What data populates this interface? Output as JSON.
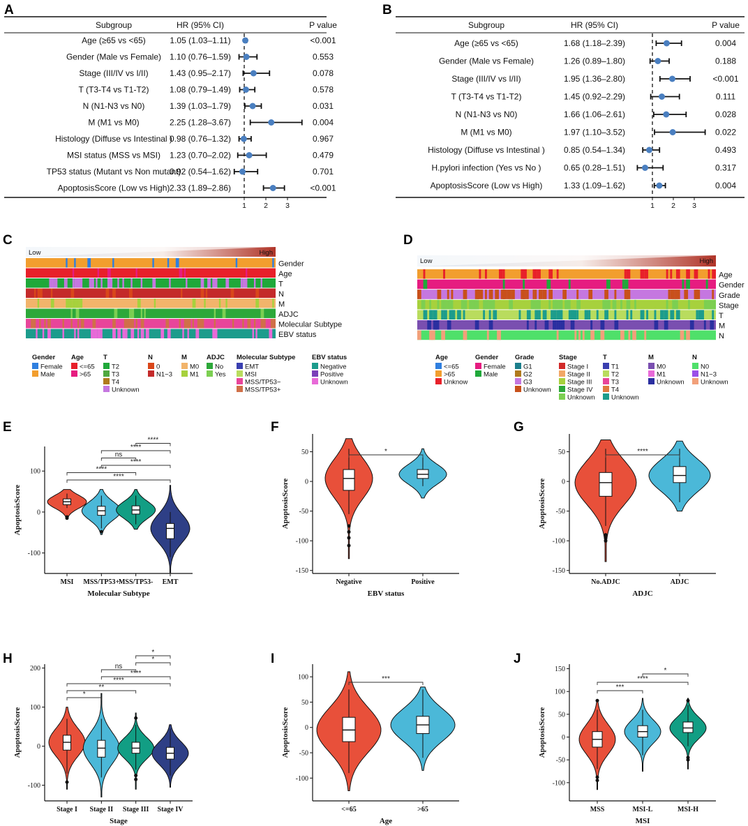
{
  "chart_data": [
    {
      "panel": "A",
      "type": "forest",
      "headers": [
        "Subgroup",
        "HR (95% CI)",
        "P value"
      ],
      "rows": [
        {
          "label": "Age (≥65 vs <65)",
          "hr_text": "1.05 (1.03–1.11)",
          "p": "<0.001",
          "hr": 1.05,
          "lo": 1.03,
          "hi": 1.11
        },
        {
          "label": "Gender (Male vs Female)",
          "hr_text": "1.10 (0.76–1.59)",
          "p": "0.553",
          "hr": 1.1,
          "lo": 0.76,
          "hi": 1.59
        },
        {
          "label": "Stage (III/IV vs I/II)",
          "hr_text": "1.43 (0.95–2.17)",
          "p": "0.078",
          "hr": 1.43,
          "lo": 0.95,
          "hi": 2.17
        },
        {
          "label": "T (T3-T4 vs T1-T2)",
          "hr_text": "1.08 (0.79–1.49)",
          "p": "0.578",
          "hr": 1.08,
          "lo": 0.79,
          "hi": 1.49
        },
        {
          "label": "N (N1-N3 vs N0)",
          "hr_text": "1.39 (1.03–1.79)",
          "p": "0.031",
          "hr": 1.39,
          "lo": 1.03,
          "hi": 1.79
        },
        {
          "label": "M (M1 vs M0)",
          "hr_text": "2.25 (1.28–3.67)",
          "p": "0.004",
          "hr": 2.25,
          "lo": 1.28,
          "hi": 3.67
        },
        {
          "label": "Histology (Diffuse vs Intestinal )",
          "hr_text": "0.98 (0.76–1.32)",
          "p": "0.967",
          "hr": 0.98,
          "lo": 0.76,
          "hi": 1.32
        },
        {
          "label": "MSI status (MSS vs MSI)",
          "hr_text": "1.23 (0.70–2.02)",
          "p": "0.479",
          "hr": 1.23,
          "lo": 0.7,
          "hi": 2.02
        },
        {
          "label": "TP53 status (Mutant vs Non mutant)",
          "hr_text": "0.92 (0.54–1.62)",
          "p": "0.701",
          "hr": 0.92,
          "lo": 0.54,
          "hi": 1.62
        },
        {
          "label": "ApoptosisScore (Low vs High)",
          "hr_text": "2.33 (1.89–2.86)",
          "p": "<0.001",
          "hr": 2.33,
          "lo": 1.89,
          "hi": 2.86
        }
      ],
      "ticks": [
        1,
        2,
        3
      ]
    },
    {
      "panel": "B",
      "type": "forest",
      "headers": [
        "Subgroup",
        "HR (95% CI)",
        "P value"
      ],
      "rows": [
        {
          "label": "Age (≥65 vs <65)",
          "hr_text": "1.68 (1.18–2.39)",
          "p": "0.004",
          "hr": 1.68,
          "lo": 1.18,
          "hi": 2.39
        },
        {
          "label": "Gender (Male vs Female)",
          "hr_text": "1.26 (0.89–1.80)",
          "p": "0.188",
          "hr": 1.26,
          "lo": 0.89,
          "hi": 1.8
        },
        {
          "label": "Stage (III/IV vs I/II)",
          "hr_text": "1.95 (1.36–2.80)",
          "p": "<0.001",
          "hr": 1.95,
          "lo": 1.36,
          "hi": 2.8
        },
        {
          "label": "T (T3-T4 vs T1-T2)",
          "hr_text": "1.45 (0.92–2.29)",
          "p": "0.111",
          "hr": 1.45,
          "lo": 0.92,
          "hi": 2.29
        },
        {
          "label": "N (N1-N3 vs N0)",
          "hr_text": "1.66 (1.06–2.61)",
          "p": "0.028",
          "hr": 1.66,
          "lo": 1.06,
          "hi": 2.61
        },
        {
          "label": "M (M1 vs M0)",
          "hr_text": "1.97 (1.10–3.52)",
          "p": "0.022",
          "hr": 1.97,
          "lo": 1.1,
          "hi": 3.52
        },
        {
          "label": "Histology (Diffuse vs Intestinal )",
          "hr_text": "0.85 (0.54–1.34)",
          "p": "0.493",
          "hr": 0.85,
          "lo": 0.54,
          "hi": 1.34
        },
        {
          "label": "H.pylori infection (Yes vs No )",
          "hr_text": "0.65 (0.28–1.51)",
          "p": "0.317",
          "hr": 0.65,
          "lo": 0.28,
          "hi": 1.51
        },
        {
          "label": "ApoptosisScore (Low vs High)",
          "hr_text": "1.33 (1.09–1.62)",
          "p": "0.004",
          "hr": 1.33,
          "lo": 1.09,
          "hi": 1.62
        }
      ],
      "ticks": [
        1,
        2,
        3
      ]
    },
    {
      "panel": "C",
      "type": "heatmap",
      "gradient_labels": [
        "Low",
        "High"
      ],
      "tracks": [
        "Gender",
        "Age",
        "T",
        "N",
        "M",
        "ADJC",
        "Molecular Subtype",
        "EBV status"
      ],
      "legend": [
        {
          "title": "Gender",
          "items": [
            {
              "name": "Female",
              "color": "#2f7fe0"
            },
            {
              "name": "Male",
              "color": "#f29e2e"
            }
          ]
        },
        {
          "title": "Age",
          "items": [
            {
              "name": "<=65",
              "color": "#e8202a"
            },
            {
              "name": ">65",
              "color": "#e61c80"
            }
          ]
        },
        {
          "title": "T",
          "items": [
            {
              "name": "T2",
              "color": "#1fa83a"
            },
            {
              "name": "T3",
              "color": "#4fa83f"
            },
            {
              "name": "T4",
              "color": "#b07a1c"
            },
            {
              "name": "Unknown",
              "color": "#c577e0"
            }
          ]
        },
        {
          "title": "N",
          "items": [
            {
              "name": "0",
              "color": "#d9471a"
            },
            {
              "name": "N1−3",
              "color": "#c42a2a"
            }
          ]
        },
        {
          "title": "M",
          "items": [
            {
              "name": "M0",
              "color": "#f2b46b"
            },
            {
              "name": "M1",
              "color": "#a7d13d"
            }
          ]
        },
        {
          "title": "ADJC",
          "items": [
            {
              "name": "No",
              "color": "#2da83a"
            },
            {
              "name": "Yes",
              "color": "#7ccf52"
            }
          ]
        },
        {
          "title": "Molecular Subtype",
          "items": [
            {
              "name": "EMT",
              "color": "#3a3fb0"
            },
            {
              "name": "MSI",
              "color": "#b9dc5e"
            },
            {
              "name": "MSS/TP53−",
              "color": "#e8459a"
            },
            {
              "name": "MSS/TP53+",
              "color": "#d07048"
            }
          ]
        },
        {
          "title": "EBV status",
          "items": [
            {
              "name": "Negative",
              "color": "#1c9c8c"
            },
            {
              "name": "Positive",
              "color": "#7a3fb8"
            },
            {
              "name": "Unknown",
              "color": "#e86ad8"
            }
          ]
        }
      ]
    },
    {
      "panel": "D",
      "type": "heatmap",
      "gradient_labels": [
        "Low",
        "High"
      ],
      "tracks": [
        "Age",
        "Gender",
        "Grade",
        "Stage",
        "T",
        "M",
        "N"
      ],
      "legend": [
        {
          "title": "Age",
          "items": [
            {
              "name": "<=65",
              "color": "#2f7fe0"
            },
            {
              "name": ">65",
              "color": "#f29e2e"
            },
            {
              "name": "Unknow",
              "color": "#e8202a"
            }
          ]
        },
        {
          "title": "Gender",
          "items": [
            {
              "name": "Female",
              "color": "#e61c80"
            },
            {
              "name": "Male",
              "color": "#1fa83a"
            }
          ]
        },
        {
          "title": "Grade",
          "items": [
            {
              "name": "G1",
              "color": "#1c7f8c"
            },
            {
              "name": "G2",
              "color": "#b07a1c"
            },
            {
              "name": "G3",
              "color": "#c577e0"
            },
            {
              "name": "Unknown",
              "color": "#c8501a"
            }
          ]
        },
        {
          "title": "Stage",
          "items": [
            {
              "name": "Stage I",
              "color": "#d12a2a"
            },
            {
              "name": "Stage II",
              "color": "#f2a766"
            },
            {
              "name": "Stage III",
              "color": "#a7d13d"
            },
            {
              "name": "Stage IV",
              "color": "#2da83a"
            },
            {
              "name": "Unknown",
              "color": "#7ccf52"
            }
          ]
        },
        {
          "title": "T",
          "items": [
            {
              "name": "T1",
              "color": "#3a3fb0"
            },
            {
              "name": "T2",
              "color": "#b9dc5e"
            },
            {
              "name": "T3",
              "color": "#e8459a"
            },
            {
              "name": "T4",
              "color": "#e07a40"
            },
            {
              "name": "Unknown",
              "color": "#1c9c8c"
            }
          ]
        },
        {
          "title": "M",
          "items": [
            {
              "name": "M0",
              "color": "#7a4fb0"
            },
            {
              "name": "M1",
              "color": "#e86ad8"
            },
            {
              "name": "Unknown",
              "color": "#2a2fa0"
            }
          ]
        },
        {
          "title": "N",
          "items": [
            {
              "name": "N0",
              "color": "#4fe06a"
            },
            {
              "name": "N1−3",
              "color": "#9a4fe8"
            },
            {
              "name": "Unknown",
              "color": "#f2a07a"
            }
          ]
        }
      ]
    },
    {
      "panel": "E",
      "type": "violin",
      "xlabel": "Molecular Subtype",
      "ylabel": "ApoptosisScore",
      "ylim": [
        -150,
        160
      ],
      "yticks": [
        -100,
        0,
        100
      ],
      "groups": [
        {
          "name": "MSI",
          "color": "#e8503a",
          "median": 25,
          "q1": 18,
          "q3": 32,
          "wlo": 10,
          "whi": 45,
          "min": -18,
          "max": 55,
          "outliers": [
            -12,
            -15
          ]
        },
        {
          "name": "MSS/TP53+",
          "color": "#4bb8d8",
          "median": 3,
          "q1": -8,
          "q3": 14,
          "wlo": -40,
          "whi": 40,
          "min": -55,
          "max": 55,
          "outliers": [
            -48
          ]
        },
        {
          "name": "MSS/TP53-",
          "color": "#129e84",
          "median": 5,
          "q1": -5,
          "q3": 15,
          "wlo": -30,
          "whi": 40,
          "min": -42,
          "max": 55,
          "outliers": []
        },
        {
          "name": "EMT",
          "color": "#2e3f86",
          "median": -40,
          "q1": -65,
          "q3": -28,
          "wlo": -110,
          "whi": 0,
          "min": -148,
          "max": 65,
          "outliers": []
        }
      ],
      "comparisons": [
        {
          "from": 0,
          "to": 3,
          "label": "****"
        },
        {
          "from": 0,
          "to": 2,
          "label": "****"
        },
        {
          "from": 1,
          "to": 3,
          "label": "****"
        },
        {
          "from": 1,
          "to": 2,
          "label": "ns"
        },
        {
          "from": 1,
          "to": 3,
          "label": "****"
        },
        {
          "from": 2,
          "to": 3,
          "label": "****"
        }
      ]
    },
    {
      "panel": "F",
      "type": "violin",
      "xlabel": "EBV status",
      "ylabel": "ApoptosisScore",
      "ylim": [
        -155,
        80
      ],
      "yticks": [
        -150,
        -100,
        -50,
        0,
        50
      ],
      "groups": [
        {
          "name": "Negative",
          "color": "#e8503a",
          "median": 5,
          "q1": -15,
          "q3": 20,
          "wlo": -55,
          "whi": 55,
          "min": -130,
          "max": 72,
          "outliers": [
            -75,
            -85,
            -95,
            -108
          ]
        },
        {
          "name": "Positive",
          "color": "#4bb8d8",
          "median": 12,
          "q1": 5,
          "q3": 20,
          "wlo": -8,
          "whi": 40,
          "min": -28,
          "max": 55,
          "outliers": []
        }
      ],
      "comparisons": [
        {
          "from": 0,
          "to": 1,
          "label": "*"
        }
      ]
    },
    {
      "panel": "G",
      "type": "violin",
      "xlabel": "ADJC",
      "ylabel": "ApoptosisScore",
      "ylim": [
        -155,
        80
      ],
      "yticks": [
        -150,
        -100,
        -50,
        0,
        50
      ],
      "groups": [
        {
          "name": "No.ADJC",
          "color": "#e8503a",
          "median": -2,
          "q1": -25,
          "q3": 15,
          "wlo": -75,
          "whi": 55,
          "min": -135,
          "max": 70,
          "outliers": [
            -90,
            -95,
            -100
          ]
        },
        {
          "name": "ADJC",
          "color": "#4bb8d8",
          "median": 10,
          "q1": -2,
          "q3": 25,
          "wlo": -35,
          "whi": 55,
          "min": -50,
          "max": 68,
          "outliers": []
        }
      ],
      "comparisons": [
        {
          "from": 0,
          "to": 1,
          "label": "****"
        }
      ]
    },
    {
      "panel": "H",
      "type": "violin",
      "xlabel": "Stage",
      "ylabel": "ApoptosisScore",
      "ylim": [
        -140,
        210
      ],
      "yticks": [
        -100,
        0,
        100,
        200
      ],
      "groups": [
        {
          "name": "Stage I",
          "color": "#e8503a",
          "median": 10,
          "q1": -10,
          "q3": 28,
          "wlo": -70,
          "whi": 70,
          "min": -110,
          "max": 100,
          "outliers": [
            -92
          ]
        },
        {
          "name": "Stage II",
          "color": "#4bb8d8",
          "median": -5,
          "q1": -28,
          "q3": 15,
          "wlo": -80,
          "whi": 70,
          "min": -130,
          "max": 135,
          "outliers": []
        },
        {
          "name": "Stage III",
          "color": "#129e84",
          "median": -5,
          "q1": -18,
          "q3": 10,
          "wlo": -60,
          "whi": 55,
          "min": -110,
          "max": 85,
          "outliers": [
            -75,
            -85,
            72
          ]
        },
        {
          "name": "Stage IV",
          "color": "#2e3f86",
          "median": -18,
          "q1": -33,
          "q3": -3,
          "wlo": -75,
          "whi": 45,
          "min": -105,
          "max": 55,
          "outliers": []
        }
      ],
      "comparisons": [
        {
          "from": 0,
          "to": 1,
          "label": "*"
        },
        {
          "from": 0,
          "to": 2,
          "label": "**"
        },
        {
          "from": 0,
          "to": 3,
          "label": "****"
        },
        {
          "from": 1,
          "to": 3,
          "label": "****"
        },
        {
          "from": 1,
          "to": 2,
          "label": "ns"
        },
        {
          "from": 2,
          "to": 3,
          "label": "*"
        },
        {
          "from": 2,
          "to": 3,
          "label": "*"
        }
      ]
    },
    {
      "panel": "I",
      "type": "violin",
      "xlabel": "Age",
      "ylabel": "ApoptosisScore",
      "ylim": [
        -145,
        125
      ],
      "yticks": [
        -100,
        -50,
        0,
        50,
        100
      ],
      "groups": [
        {
          "name": "<=65",
          "color": "#e8503a",
          "median": -5,
          "q1": -28,
          "q3": 20,
          "wlo": -90,
          "whi": 75,
          "min": -125,
          "max": 110,
          "outliers": []
        },
        {
          "name": ">65",
          "color": "#4bb8d8",
          "median": 5,
          "q1": -12,
          "q3": 22,
          "wlo": -60,
          "whi": 75,
          "min": -85,
          "max": 80,
          "outliers": []
        }
      ],
      "comparisons": [
        {
          "from": 0,
          "to": 1,
          "label": "***"
        }
      ]
    },
    {
      "panel": "J",
      "type": "violin",
      "xlabel": "MSI",
      "ylabel": "ApoptosisScore",
      "ylim": [
        -140,
        160
      ],
      "yticks": [
        -100,
        -50,
        0,
        50,
        100,
        150
      ],
      "groups": [
        {
          "name": "MSS",
          "color": "#e8503a",
          "median": -5,
          "q1": -22,
          "q3": 12,
          "wlo": -70,
          "whi": 60,
          "min": -115,
          "max": 80,
          "outliers": [
            -88,
            -95,
            80
          ]
        },
        {
          "name": "MSI-L",
          "color": "#4bb8d8",
          "median": 12,
          "q1": 0,
          "q3": 25,
          "wlo": -40,
          "whi": 60,
          "min": -75,
          "max": 85,
          "outliers": []
        },
        {
          "name": "MSI-H",
          "color": "#129e84",
          "median": 20,
          "q1": 10,
          "q3": 33,
          "wlo": -20,
          "whi": 70,
          "min": -70,
          "max": 85,
          "outliers": [
            -45,
            -50,
            80
          ]
        }
      ],
      "comparisons": [
        {
          "from": 0,
          "to": 1,
          "label": "***"
        },
        {
          "from": 0,
          "to": 2,
          "label": "****"
        },
        {
          "from": 1,
          "to": 2,
          "label": "*"
        }
      ]
    }
  ]
}
